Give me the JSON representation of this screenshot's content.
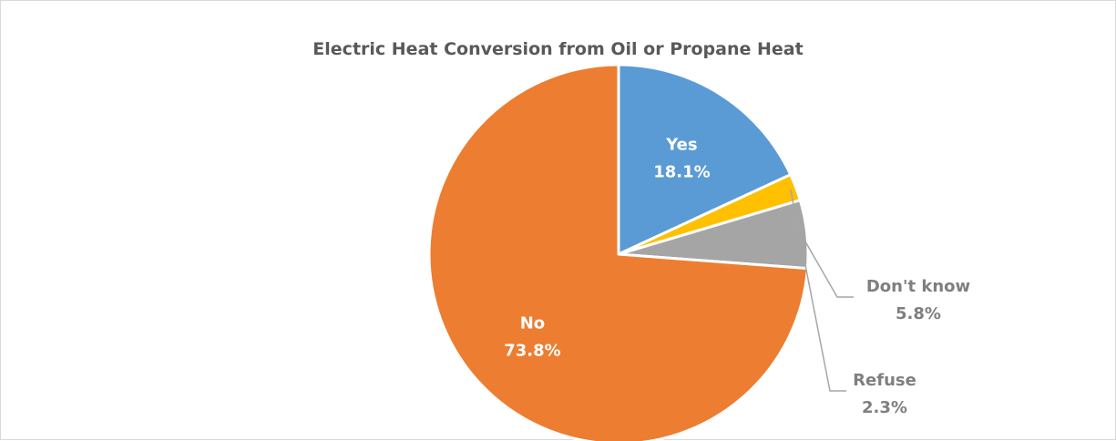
{
  "chart_data": {
    "type": "pie",
    "title": "Electric Heat Conversion from Oil or Propane Heat",
    "slices": [
      {
        "name": "Yes",
        "value": 18.1,
        "label": "18.1%",
        "color": "#5b9bd5",
        "label_color": "#ffffff"
      },
      {
        "name": "Refuse",
        "value": 2.3,
        "label": "2.3%",
        "color": "#ffc000",
        "label_color": "#7f7f7f"
      },
      {
        "name": "Don't know",
        "value": 5.8,
        "label": "5.8%",
        "color": "#a5a5a5",
        "label_color": "#7f7f7f"
      },
      {
        "name": "No",
        "value": 73.8,
        "label": "73.8%",
        "color": "#ed7d31",
        "label_color": "#ffffff"
      }
    ],
    "legend": "none",
    "leader_line_color": "#a6a6a6"
  }
}
